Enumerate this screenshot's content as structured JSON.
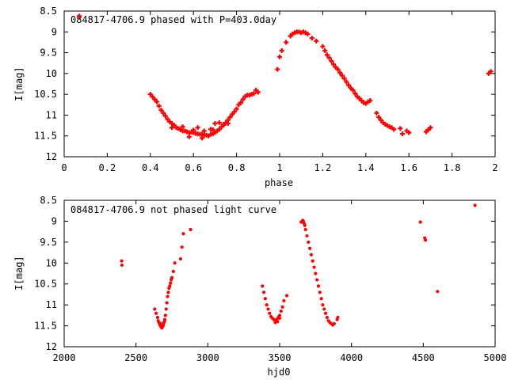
{
  "chart_data": [
    {
      "type": "scatter",
      "title": "084817-4706.9 phased with P=403.0day",
      "xlabel": "phase",
      "ylabel": "I[mag]",
      "xlim": [
        0,
        2
      ],
      "ylim": [
        12,
        8.5
      ],
      "y_inverted": true,
      "xticks": [
        "0",
        "0.2",
        "0.4",
        "0.6",
        "0.8",
        "1",
        "1.2",
        "1.4",
        "1.6",
        "1.8",
        "2"
      ],
      "yticks": [
        "8.5",
        "9",
        "9.5",
        "10",
        "10.5",
        "11",
        "11.5",
        "12"
      ],
      "marker": "plus",
      "color": "#ff0000",
      "x": [
        0.07,
        0.4,
        0.41,
        0.42,
        0.43,
        0.44,
        0.45,
        0.46,
        0.47,
        0.48,
        0.49,
        0.5,
        0.51,
        0.52,
        0.53,
        0.54,
        0.55,
        0.56,
        0.57,
        0.58,
        0.59,
        0.6,
        0.61,
        0.62,
        0.63,
        0.64,
        0.65,
        0.66,
        0.67,
        0.68,
        0.69,
        0.7,
        0.71,
        0.72,
        0.73,
        0.74,
        0.75,
        0.76,
        0.77,
        0.78,
        0.79,
        0.8,
        0.81,
        0.82,
        0.83,
        0.84,
        0.85,
        0.86,
        0.87,
        0.88,
        0.89,
        0.9,
        0.5,
        0.55,
        0.6,
        0.62,
        0.65,
        0.68,
        0.7,
        0.72,
        0.74,
        0.76,
        0.58,
        0.64,
        0.69,
        0.99,
        1.0,
        1.01,
        1.03,
        1.05,
        1.06,
        1.07,
        1.08,
        1.09,
        1.1,
        1.11,
        1.12,
        1.13,
        1.15,
        1.17,
        1.2,
        1.21,
        1.22,
        1.23,
        1.24,
        1.25,
        1.26,
        1.27,
        1.28,
        1.29,
        1.3,
        1.31,
        1.32,
        1.33,
        1.34,
        1.35,
        1.36,
        1.37,
        1.38,
        1.39,
        1.4,
        1.41,
        1.42,
        1.45,
        1.46,
        1.47,
        1.48,
        1.49,
        1.5,
        1.51,
        1.52,
        1.53,
        1.56,
        1.57,
        1.59,
        1.6,
        1.68,
        1.69,
        1.7,
        1.97,
        1.98
      ],
      "y": [
        8.62,
        10.5,
        10.56,
        10.62,
        10.68,
        10.78,
        10.88,
        10.95,
        11.02,
        11.1,
        11.16,
        11.2,
        11.24,
        11.3,
        11.32,
        11.35,
        11.38,
        11.38,
        11.4,
        11.42,
        11.41,
        11.42,
        11.44,
        11.45,
        11.46,
        11.46,
        11.48,
        11.48,
        11.5,
        11.46,
        11.45,
        11.42,
        11.38,
        11.34,
        11.28,
        11.24,
        11.18,
        11.12,
        11.05,
        10.98,
        10.92,
        10.85,
        10.75,
        10.7,
        10.62,
        10.55,
        10.52,
        10.52,
        10.5,
        10.48,
        10.4,
        10.45,
        11.3,
        11.28,
        11.36,
        11.3,
        11.38,
        11.34,
        11.2,
        11.18,
        11.22,
        11.2,
        11.52,
        11.55,
        11.35,
        9.9,
        9.6,
        9.45,
        9.25,
        9.1,
        9.05,
        9.02,
        9.0,
        9.0,
        9.02,
        9.0,
        9.02,
        9.05,
        9.15,
        9.22,
        9.35,
        9.45,
        9.55,
        9.62,
        9.7,
        9.78,
        9.85,
        9.9,
        9.98,
        10.05,
        10.12,
        10.2,
        10.28,
        10.35,
        10.4,
        10.48,
        10.55,
        10.6,
        10.65,
        10.7,
        10.72,
        10.68,
        10.65,
        10.95,
        11.05,
        11.12,
        11.18,
        11.22,
        11.25,
        11.28,
        11.3,
        11.34,
        11.32,
        11.45,
        11.38,
        11.42,
        11.4,
        11.35,
        11.3,
        10.0,
        9.95
      ]
    },
    {
      "type": "scatter",
      "title": "084817-4706.9 not phased light curve",
      "xlabel": "hjd0",
      "ylabel": "I[mag]",
      "xlim": [
        2000,
        5000
      ],
      "ylim": [
        12,
        8.5
      ],
      "y_inverted": true,
      "xticks": [
        "2000",
        "2500",
        "3000",
        "3500",
        "4000",
        "4500",
        "5000"
      ],
      "yticks": [
        "8.5",
        "9",
        "9.5",
        "10",
        "10.5",
        "11",
        "11.5",
        "12"
      ],
      "marker": "dot",
      "color": "#ff0000",
      "x": [
        2400,
        2402,
        2630,
        2640,
        2650,
        2655,
        2660,
        2665,
        2670,
        2675,
        2680,
        2685,
        2690,
        2695,
        2700,
        2705,
        2710,
        2715,
        2720,
        2725,
        2730,
        2735,
        2740,
        2745,
        2750,
        2760,
        2770,
        2810,
        2820,
        2830,
        2880,
        2672,
        2688,
        2698,
        3380,
        3390,
        3400,
        3410,
        3420,
        3430,
        3440,
        3450,
        3460,
        3470,
        3480,
        3490,
        3500,
        3510,
        3520,
        3530,
        3550,
        3470,
        3485,
        3500,
        3650,
        3660,
        3665,
        3670,
        3675,
        3680,
        3690,
        3700,
        3710,
        3720,
        3730,
        3740,
        3750,
        3760,
        3770,
        3780,
        3790,
        3800,
        3810,
        3820,
        3830,
        3840,
        3850,
        3860,
        3870,
        3880,
        3900,
        3905,
        4480,
        4510,
        4515,
        4600,
        4860
      ],
      "y": [
        9.95,
        10.05,
        11.1,
        11.2,
        11.3,
        11.38,
        11.42,
        11.46,
        11.5,
        11.52,
        11.55,
        11.52,
        11.48,
        11.42,
        11.35,
        11.25,
        11.1,
        10.95,
        10.8,
        10.7,
        10.6,
        10.55,
        10.48,
        10.4,
        10.35,
        10.2,
        10.0,
        9.9,
        9.62,
        9.3,
        9.2,
        11.45,
        11.5,
        11.4,
        10.55,
        10.7,
        10.85,
        11.0,
        11.1,
        11.2,
        11.28,
        11.32,
        11.35,
        11.38,
        11.35,
        11.3,
        11.25,
        11.15,
        11.05,
        10.9,
        10.78,
        11.42,
        11.4,
        11.32,
        9.02,
        8.98,
        9.0,
        9.05,
        9.1,
        9.2,
        9.35,
        9.5,
        9.65,
        9.8,
        9.95,
        10.1,
        10.25,
        10.4,
        10.55,
        10.7,
        10.85,
        11.0,
        11.1,
        11.2,
        11.3,
        11.38,
        11.42,
        11.45,
        11.48,
        11.45,
        11.35,
        11.3,
        9.02,
        9.4,
        9.45,
        10.68,
        8.62
      ]
    }
  ]
}
